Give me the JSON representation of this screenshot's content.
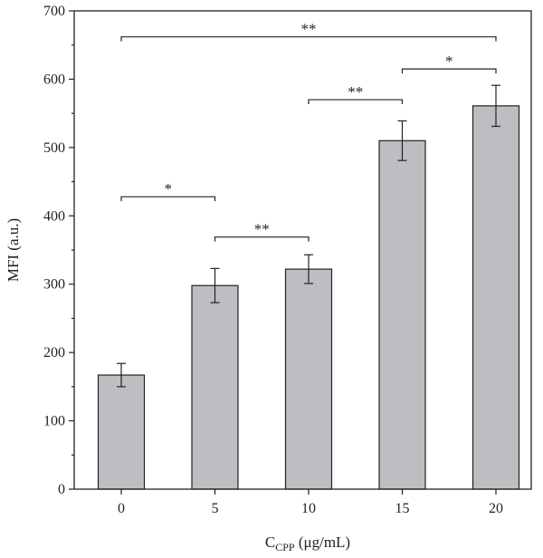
{
  "chart_data": {
    "type": "bar",
    "categories": [
      "0",
      "5",
      "10",
      "15",
      "20"
    ],
    "values": [
      167,
      298,
      322,
      510,
      561
    ],
    "errors": [
      17,
      25,
      21,
      29,
      30
    ],
    "ylabel": "MFI (a.u.)",
    "xlabel": {
      "main": "C",
      "subscript": "CPP",
      "unit": " (μg/mL)"
    },
    "ylim": [
      0,
      700
    ],
    "yticks": [
      0,
      100,
      200,
      300,
      400,
      500,
      600,
      700
    ],
    "colors": {
      "bar": "#bcbec1",
      "outline": "#222222"
    },
    "significance": [
      {
        "from": 0,
        "to": 4,
        "y": 662,
        "label": "**"
      },
      {
        "from": 0,
        "to": 1,
        "y": 428,
        "label": "*"
      },
      {
        "from": 1,
        "to": 2,
        "y": 369,
        "label": "**"
      },
      {
        "from": 2,
        "to": 3,
        "y": 570,
        "label": "**"
      },
      {
        "from": 3,
        "to": 4,
        "y": 615,
        "label": "*"
      }
    ]
  }
}
